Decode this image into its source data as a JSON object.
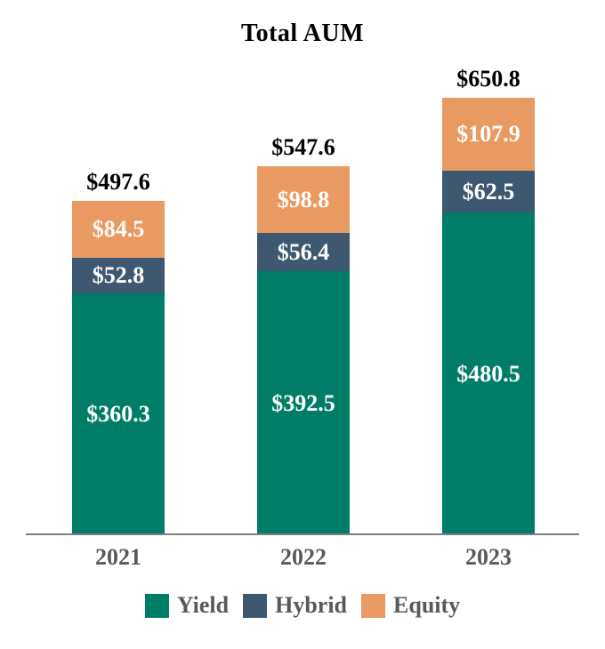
{
  "chart_data": {
    "type": "bar",
    "stacked": true,
    "title": "Total AUM",
    "categories": [
      "2021",
      "2022",
      "2023"
    ],
    "series": [
      {
        "name": "Yield",
        "color": "#007D66",
        "values": [
          360.3,
          392.5,
          480.5
        ],
        "labels": [
          "$360.3",
          "$392.5",
          "$480.5"
        ]
      },
      {
        "name": "Hybrid",
        "color": "#3E5871",
        "values": [
          52.8,
          56.4,
          62.5
        ],
        "labels": [
          "$52.8",
          "$56.4",
          "$62.5"
        ]
      },
      {
        "name": "Equity",
        "color": "#E99A62",
        "values": [
          84.5,
          98.8,
          107.9
        ],
        "labels": [
          "$84.5",
          "$98.8",
          "$107.9"
        ]
      }
    ],
    "totals": [
      497.6,
      547.6,
      650.8
    ],
    "total_labels": [
      "$497.6",
      "$547.6",
      "$650.8"
    ],
    "legend": [
      {
        "label": "Yield",
        "color": "#007D66"
      },
      {
        "label": "Hybrid",
        "color": "#3E5871"
      },
      {
        "label": "Equity",
        "color": "#E99A62"
      }
    ],
    "legend_position": "bottom",
    "grid": false,
    "ylim": [
      0,
      700
    ],
    "value_label_color": "#FFFFFF",
    "axis_text_color": "#595959",
    "xlabel": "",
    "ylabel": ""
  }
}
